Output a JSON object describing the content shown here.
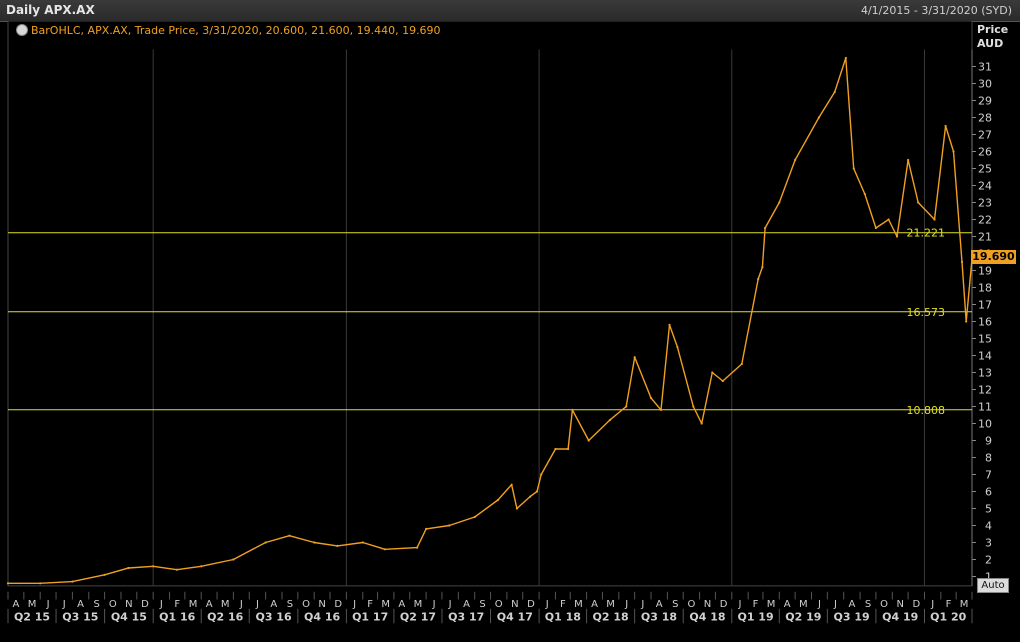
{
  "header": {
    "title": "Daily APX.AX",
    "date_range": "4/1/2015 - 3/31/2020 (SYD)"
  },
  "legend": {
    "text": "BarOHLC, APX.AX, Trade Price, 3/31/2020, 20.600, 21.600, 19.440, 19.690"
  },
  "axis": {
    "y_title_1": "Price",
    "y_title_2": "AUD",
    "auto_label": "Auto",
    "last_price_label": "19.690"
  },
  "colors": {
    "background": "#000000",
    "series": "#f0a020",
    "hline": "#e0e020",
    "grid": "#3a3a3a",
    "axis_text": "#d0d0d0"
  },
  "chart_data": {
    "type": "line",
    "title": "Daily APX.AX",
    "ylabel": "Price AUD",
    "ylim": [
      0,
      32
    ],
    "y_ticks": [
      1,
      2,
      3,
      4,
      5,
      6,
      7,
      8,
      9,
      10,
      11,
      12,
      13,
      14,
      15,
      16,
      17,
      18,
      19,
      20,
      21,
      22,
      23,
      24,
      25,
      26,
      27,
      28,
      29,
      30,
      31
    ],
    "x_range": [
      "2015-04-01",
      "2020-03-31"
    ],
    "month_labels": [
      "A",
      "M",
      "J",
      "J",
      "A",
      "S",
      "O",
      "N",
      "D",
      "J",
      "F",
      "M",
      "A",
      "M",
      "J",
      "J",
      "A",
      "S",
      "O",
      "N",
      "D",
      "J",
      "F",
      "M",
      "A",
      "M",
      "J",
      "J",
      "A",
      "S",
      "O",
      "N",
      "D",
      "J",
      "F",
      "M",
      "A",
      "M",
      "J",
      "J",
      "A",
      "S",
      "O",
      "N",
      "D",
      "J",
      "F",
      "M",
      "A",
      "M",
      "J",
      "J",
      "A",
      "S",
      "O",
      "N",
      "D",
      "J",
      "F",
      "M"
    ],
    "quarter_labels": [
      "Q2 15",
      "Q3 15",
      "Q4 15",
      "Q1 16",
      "Q2 16",
      "Q3 16",
      "Q4 16",
      "Q1 17",
      "Q2 17",
      "Q3 17",
      "Q4 17",
      "Q1 18",
      "Q2 18",
      "Q3 18",
      "Q4 18",
      "Q1 19",
      "Q2 19",
      "Q3 19",
      "Q4 19",
      "Q1 20"
    ],
    "series": [
      {
        "x": [
          "2015-04-01",
          "2015-06-01",
          "2015-08-01",
          "2015-10-01",
          "2015-11-15",
          "2016-01-01",
          "2016-02-15",
          "2016-04-01",
          "2016-06-01",
          "2016-08-01",
          "2016-09-15",
          "2016-11-01",
          "2016-12-15",
          "2017-02-01",
          "2017-03-15",
          "2017-05-15",
          "2017-06-01",
          "2017-07-15",
          "2017-09-01",
          "2017-10-15",
          "2017-11-10",
          "2017-11-20",
          "2017-12-15",
          "2017-12-28",
          "2018-01-05",
          "2018-02-01",
          "2018-02-25",
          "2018-03-05",
          "2018-04-05",
          "2018-05-15",
          "2018-06-15",
          "2018-07-01",
          "2018-08-01",
          "2018-08-20",
          "2018-09-05",
          "2018-09-20",
          "2018-10-20",
          "2018-11-05",
          "2018-11-25",
          "2018-12-15",
          "2019-01-20",
          "2019-02-20",
          "2019-02-28",
          "2019-03-05",
          "2019-04-01",
          "2019-05-01",
          "2019-06-15",
          "2019-07-15",
          "2019-08-05",
          "2019-08-20",
          "2019-09-10",
          "2019-10-01",
          "2019-10-25",
          "2019-11-10",
          "2019-12-01",
          "2019-12-20",
          "2020-01-20",
          "2020-02-10",
          "2020-02-25",
          "2020-03-12",
          "2020-03-20",
          "2020-03-31"
        ],
        "y": [
          0.6,
          0.6,
          0.7,
          1.1,
          1.5,
          1.6,
          1.4,
          1.6,
          2.0,
          3.0,
          3.4,
          3.0,
          2.8,
          3.0,
          2.6,
          2.7,
          3.8,
          4.0,
          4.5,
          5.5,
          6.4,
          5.0,
          5.7,
          6.0,
          7.0,
          8.5,
          8.5,
          10.8,
          9.0,
          10.2,
          11.0,
          13.9,
          11.5,
          10.8,
          15.8,
          14.5,
          11.0,
          10.0,
          13.0,
          12.5,
          13.5,
          18.5,
          19.2,
          21.5,
          23.0,
          25.5,
          28.0,
          29.5,
          31.5,
          25.0,
          23.5,
          21.5,
          22.0,
          21.0,
          25.5,
          23.0,
          22.0,
          27.5,
          26.0,
          19.5,
          16.0,
          19.69
        ]
      }
    ],
    "horizontal_lines": [
      {
        "value": 21.221,
        "label": "21.221"
      },
      {
        "value": 16.573,
        "label": "16.573"
      },
      {
        "value": 10.808,
        "label": "10.808"
      }
    ],
    "last_price": 19.69,
    "grid": true
  }
}
